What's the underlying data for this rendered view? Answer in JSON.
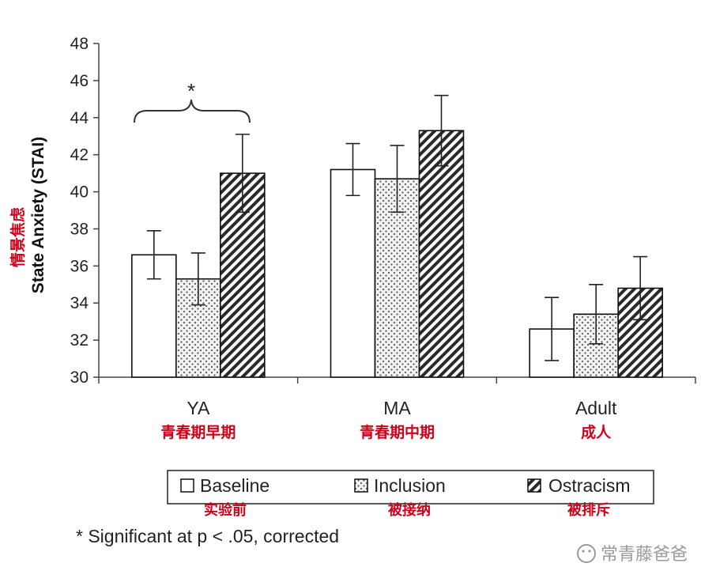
{
  "chart_data": {
    "type": "bar",
    "ylabel": "State Anxiety (STAI)",
    "ylabel_cn": "情景焦虑",
    "ylim": [
      30,
      48
    ],
    "yticks": [
      30,
      32,
      34,
      36,
      38,
      40,
      42,
      44,
      46,
      48
    ],
    "categories": [
      "YA",
      "MA",
      "Adult"
    ],
    "categories_cn": [
      "青春期早期",
      "青春期中期",
      "成人"
    ],
    "series": [
      {
        "name": "Baseline",
        "name_cn": "实验前",
        "pattern": "plain",
        "values": [
          36.6,
          41.2,
          32.6
        ],
        "errors": [
          1.3,
          1.4,
          1.7
        ]
      },
      {
        "name": "Inclusion",
        "name_cn": "被接纳",
        "pattern": "dots",
        "values": [
          35.3,
          40.7,
          33.4
        ],
        "errors": [
          1.4,
          1.8,
          1.6
        ]
      },
      {
        "name": "Ostracism",
        "name_cn": "被排斥",
        "pattern": "hatch",
        "values": [
          41.0,
          43.3,
          34.8
        ],
        "errors": [
          2.1,
          1.9,
          1.7
        ]
      }
    ],
    "significance": {
      "category": "YA",
      "marker": "*"
    },
    "footnote": "* Significant at p < .05, corrected",
    "legend_position": "bottom-right"
  },
  "watermark": "常青藤爸爸",
  "colors": {
    "axis": "#444444",
    "text": "#222222",
    "accent": "#d0021b",
    "bar_stroke": "#111111"
  }
}
